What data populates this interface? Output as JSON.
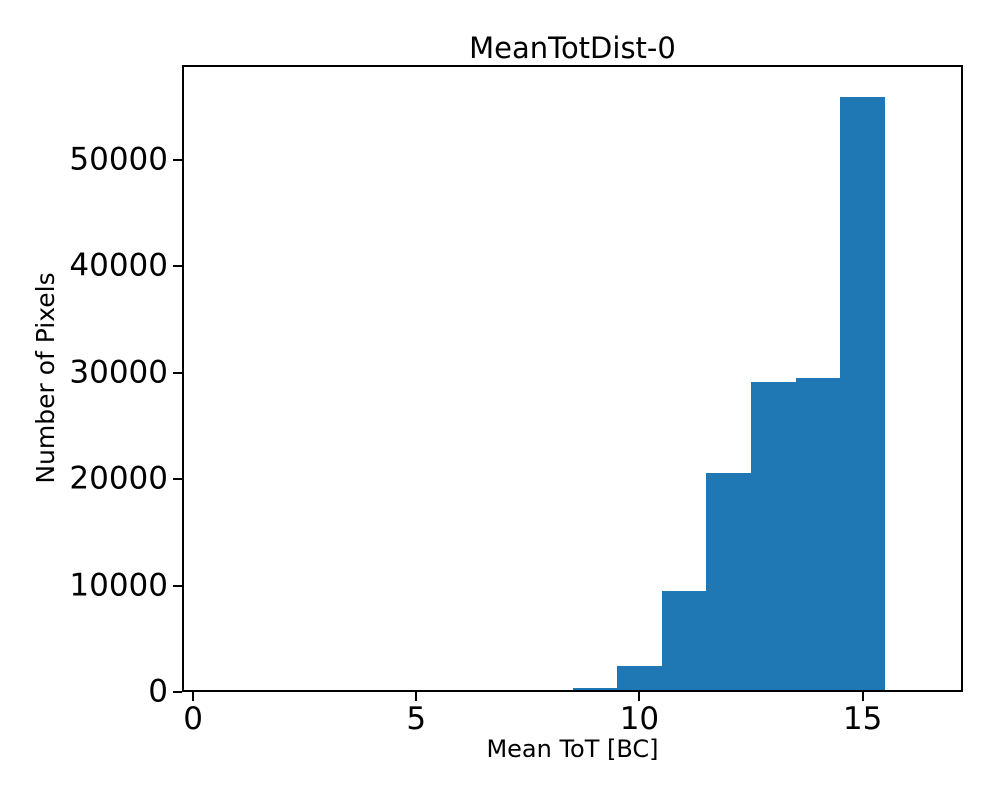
{
  "chart_data": {
    "type": "bar",
    "subtype": "histogram",
    "title": "MeanTotDist-0",
    "xlabel": "Mean ToT [BC]",
    "ylabel": "Number of Pixels",
    "bar_color": "#1f77b4",
    "axis_color": "#000000",
    "background_color": "#ffffff",
    "grid": "off",
    "legend": "none",
    "xlim": [
      -0.25,
      17.25
    ],
    "ylim": [
      0,
      58900
    ],
    "xticks": [
      0,
      5,
      10,
      15
    ],
    "yticks": [
      0,
      10000,
      20000,
      30000,
      40000,
      50000
    ],
    "bins": [
      {
        "x0": 8.5,
        "x1": 9.5,
        "count": 420
      },
      {
        "x0": 9.5,
        "x1": 10.5,
        "count": 2450
      },
      {
        "x0": 10.5,
        "x1": 11.5,
        "count": 9500
      },
      {
        "x0": 11.5,
        "x1": 12.5,
        "count": 20600
      },
      {
        "x0": 12.5,
        "x1": 13.5,
        "count": 29100
      },
      {
        "x0": 13.5,
        "x1": 14.5,
        "count": 29500
      },
      {
        "x0": 14.5,
        "x1": 15.5,
        "count": 55900
      }
    ]
  }
}
